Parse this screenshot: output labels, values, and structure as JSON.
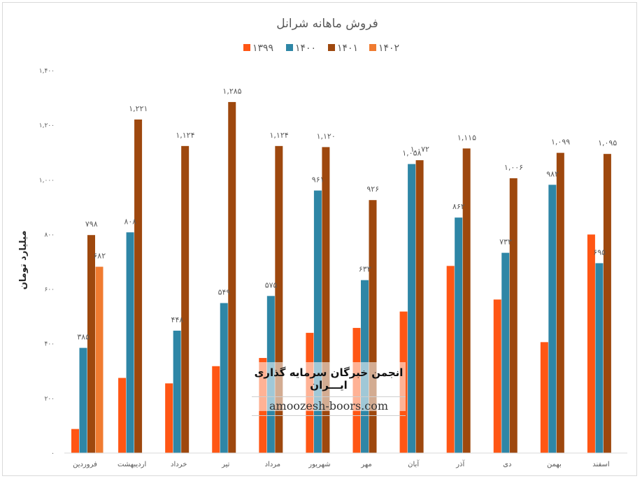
{
  "chart_data": {
    "type": "bar",
    "title": "فروش ماهانه شرانل",
    "ylabel": "میلیارد تومان",
    "xlabel": "",
    "ylim": [
      0,
      1400
    ],
    "y_ticks": [
      0,
      200,
      400,
      600,
      800,
      1000,
      1200,
      1400
    ],
    "y_tick_labels": [
      "۰",
      "۲۰۰",
      "۴۰۰",
      "۶۰۰",
      "۸۰۰",
      "۱,۰۰۰",
      "۱,۲۰۰",
      "۱,۴۰۰"
    ],
    "grid": false,
    "legend_position": "top",
    "categories": [
      "فروردین",
      "اردیبهشت",
      "خرداد",
      "تیر",
      "مرداد",
      "شهریور",
      "مهر",
      "آبان",
      "آذر",
      "دی",
      "بهمن",
      "اسفند"
    ],
    "series": [
      {
        "name": "۱۳۹۹",
        "color": "#ff5614",
        "values": [
          88,
          275,
          255,
          318,
          348,
          440,
          458,
          518,
          685,
          562,
          406,
          800
        ],
        "labels": [
          null,
          null,
          null,
          null,
          null,
          null,
          null,
          null,
          null,
          null,
          null,
          null
        ]
      },
      {
        "name": "۱۴۰۰",
        "color": "#2e86a6",
        "values": [
          385,
          808,
          448,
          549,
          575,
          961,
          633,
          1058,
          862,
          733,
          982,
          695
        ],
        "labels": [
          "۳۸۵",
          "۸۰۸",
          "۴۴۸",
          "۵۴۹",
          "۵۷۵",
          "۹۶۱",
          "۶۳۳",
          "۱,۰۵۸",
          "۸۶۲",
          "۷۳۳",
          "۹۸۲",
          "۶۹۵"
        ]
      },
      {
        "name": "۱۴۰۱",
        "color": "#9e480e",
        "values": [
          798,
          1221,
          1124,
          1285,
          1124,
          1120,
          926,
          1072,
          1115,
          1006,
          1099,
          1095
        ],
        "labels": [
          "۷۹۸",
          "۱,۲۲۱",
          "۱,۱۲۴",
          "۱,۲۸۵",
          "۱,۱۲۴",
          "۱,۱۲۰",
          "۹۲۶",
          "۱,۰۷۲",
          "۱,۱۱۵",
          "۱,۰۰۶",
          "۱,۰۹۹",
          "۱,۰۹۵"
        ]
      },
      {
        "name": "۱۴۰۲",
        "color": "#f07b30",
        "values": [
          682,
          null,
          null,
          null,
          null,
          null,
          null,
          null,
          null,
          null,
          null,
          null
        ],
        "labels": [
          "۶۸۲",
          null,
          null,
          null,
          null,
          null,
          null,
          null,
          null,
          null,
          null,
          null
        ]
      }
    ]
  },
  "watermark": {
    "title": "انجمن خبرگان سرمایه گذاری ایـــران",
    "url": "amoozesh-boors.com"
  }
}
